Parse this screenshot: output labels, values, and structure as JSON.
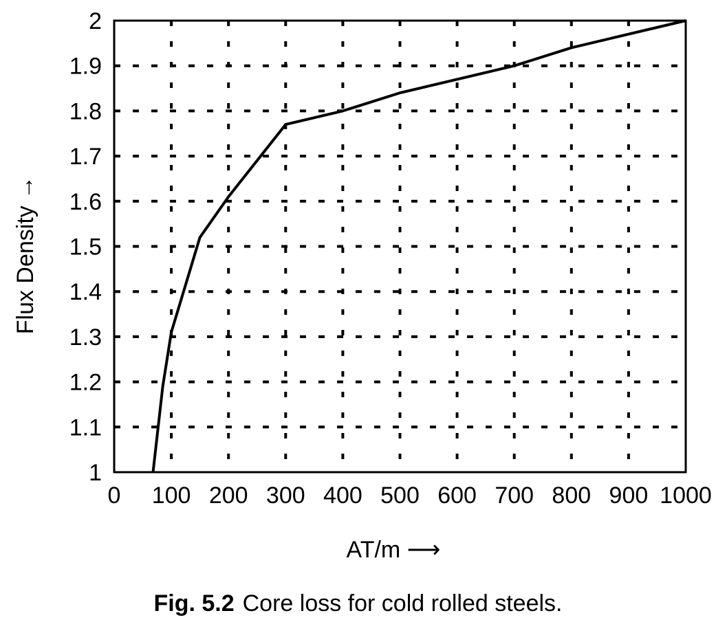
{
  "chart_data": {
    "type": "line",
    "title": "",
    "xlabel": "AT/m ⟶",
    "ylabel": "Flux Density →",
    "xlim": [
      0,
      1000
    ],
    "ylim": [
      1,
      2
    ],
    "x_ticks": [
      0,
      100,
      200,
      300,
      400,
      500,
      600,
      700,
      800,
      900,
      1000
    ],
    "x_tick_labels": [
      "0",
      "100",
      "200",
      "300",
      "400",
      "500",
      "600",
      "700",
      "800",
      "900",
      "1000"
    ],
    "y_ticks": [
      1,
      1.1,
      1.2,
      1.3,
      1.4,
      1.5,
      1.6,
      1.7,
      1.8,
      1.9,
      2
    ],
    "y_tick_labels": [
      "1",
      "1.1",
      "1.2",
      "1.3",
      "1.4",
      "1.5",
      "1.6",
      "1.7",
      "1.8",
      "1.9",
      "2"
    ],
    "grid": true,
    "series": [
      {
        "x": [
          68,
          85,
          100,
          150,
          200,
          300,
          400,
          500,
          600,
          700,
          800,
          1000
        ],
        "y": [
          1.0,
          1.19,
          1.31,
          1.52,
          1.61,
          1.77,
          1.8,
          1.84,
          1.87,
          1.9,
          1.94,
          2.0
        ]
      }
    ]
  },
  "caption": {
    "figure_number": "Fig. 5.2",
    "text": "Core loss for cold rolled steels."
  }
}
